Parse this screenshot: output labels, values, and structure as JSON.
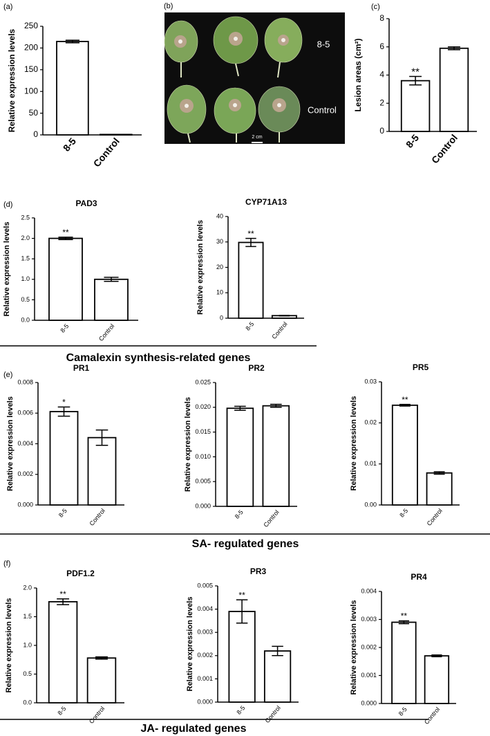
{
  "chart_data": [
    {
      "type": "bar",
      "panel_label": "(a)",
      "ylabel": "Relative expression levels",
      "categories": [
        "8-5",
        "Control"
      ],
      "values": [
        215,
        1
      ],
      "errors": [
        3,
        0.2
      ],
      "annotations": [
        null,
        null
      ],
      "ylim": [
        0,
        250
      ],
      "yticks": [
        0,
        50,
        100,
        150,
        200,
        250
      ]
    },
    {
      "type": "bar",
      "panel_label": "(c)",
      "ylabel": "Lesion areas (cm²)",
      "categories": [
        "8-5",
        "Control"
      ],
      "values": [
        3.6,
        5.9
      ],
      "errors": [
        0.3,
        0.1
      ],
      "annotations": [
        "**",
        null
      ],
      "ylim": [
        0,
        8
      ],
      "yticks": [
        0,
        2,
        4,
        6,
        8
      ]
    },
    {
      "type": "bar",
      "panel_label": "(d)",
      "title": "PAD3",
      "ylabel": "Relative expression levels",
      "categories": [
        "8-5",
        "Control"
      ],
      "values": [
        2.0,
        1.0
      ],
      "errors": [
        0.03,
        0.05
      ],
      "annotations": [
        "**",
        null
      ],
      "ylim": [
        0,
        2.5
      ],
      "yticks": [
        {
          "value": 0,
          "label": "0.0"
        },
        0.5,
        {
          "value": 1,
          "label": "1.0"
        },
        1.5,
        {
          "value": 2,
          "label": "2.0"
        },
        2.5
      ]
    },
    {
      "type": "bar",
      "title": "CYP71A13",
      "ylabel": "Relative expression levels",
      "categories": [
        "8-5",
        "Control"
      ],
      "values": [
        29.8,
        1
      ],
      "errors": [
        1.6,
        0.1
      ],
      "annotations": [
        "**",
        null
      ],
      "ylim": [
        0,
        40
      ],
      "yticks": [
        0,
        10,
        20,
        30,
        40
      ]
    },
    {
      "type": "bar",
      "panel_label": "(e)",
      "title": "PR1",
      "ylabel": "Relative expression levels",
      "categories": [
        "8-5",
        "Control"
      ],
      "values": [
        0.0061,
        0.0044
      ],
      "errors": [
        0.0003,
        0.0005
      ],
      "annotations": [
        "*",
        null
      ],
      "ylim": [
        0,
        0.008
      ],
      "yticks": [
        {
          "value": 0,
          "label": "0.000"
        },
        0.002,
        0.004,
        0.006,
        0.008
      ]
    },
    {
      "type": "bar",
      "title": "PR2",
      "ylabel": "Relative expression levels",
      "categories": [
        "8-5",
        "Control"
      ],
      "values": [
        0.0198,
        0.0203
      ],
      "errors": [
        0.0004,
        0.0003
      ],
      "annotations": [
        null,
        null
      ],
      "ylim": [
        0,
        0.025
      ],
      "yticks": [
        {
          "value": 0,
          "label": "0.000"
        },
        0.005,
        {
          "value": 0.01,
          "label": "0.010"
        },
        0.015,
        {
          "value": 0.02,
          "label": "0.020"
        },
        0.025
      ]
    },
    {
      "type": "bar",
      "title": "PR5",
      "ylabel": "Relative expression levels",
      "categories": [
        "8-5",
        "Control"
      ],
      "values": [
        0.0243,
        0.0078
      ],
      "errors": [
        0.0002,
        0.0003
      ],
      "annotations": [
        "**",
        null
      ],
      "ylim": [
        0,
        0.03
      ],
      "yticks": [
        {
          "value": 0,
          "label": "0.00"
        },
        0.01,
        0.02,
        0.03
      ]
    },
    {
      "type": "bar",
      "panel_label": "(f)",
      "title": "PDF1.2",
      "ylabel": "Relative expression levels",
      "categories": [
        "8-5",
        "Control"
      ],
      "values": [
        1.76,
        0.78
      ],
      "errors": [
        0.05,
        0.02
      ],
      "annotations": [
        "**",
        null
      ],
      "ylim": [
        0,
        2.0
      ],
      "yticks": [
        {
          "value": 0,
          "label": "0.0"
        },
        0.5,
        {
          "value": 1,
          "label": "1.0"
        },
        1.5,
        {
          "value": 2,
          "label": "2.0"
        }
      ]
    },
    {
      "type": "bar",
      "title": "PR3",
      "ylabel": "Relative expression levels",
      "categories": [
        "8-5",
        "Control"
      ],
      "values": [
        0.0039,
        0.0022
      ],
      "errors": [
        0.0005,
        0.0002
      ],
      "annotations": [
        "**",
        null
      ],
      "ylim": [
        0,
        0.005
      ],
      "yticks": [
        {
          "value": 0,
          "label": "0.000"
        },
        0.001,
        0.002,
        0.003,
        0.004,
        0.005
      ]
    },
    {
      "type": "bar",
      "title": "PR4",
      "ylabel": "Relative expression levels",
      "categories": [
        "8-5",
        "Control"
      ],
      "values": [
        0.0029,
        0.0017
      ],
      "errors": [
        5e-05,
        3e-05
      ],
      "annotations": [
        "**",
        null
      ],
      "ylim": [
        0,
        0.004
      ],
      "yticks": [
        {
          "value": 0,
          "label": "0.000"
        },
        0.001,
        0.002,
        0.003,
        0.004
      ]
    }
  ],
  "photo": {
    "panel_label": "(b)",
    "row_labels": [
      "8-5",
      "Control"
    ],
    "scale_bar": "2 cm"
  },
  "sections": [
    "Camalexin synthesis-related genes",
    "SA- regulated genes",
    "JA- regulated genes"
  ]
}
